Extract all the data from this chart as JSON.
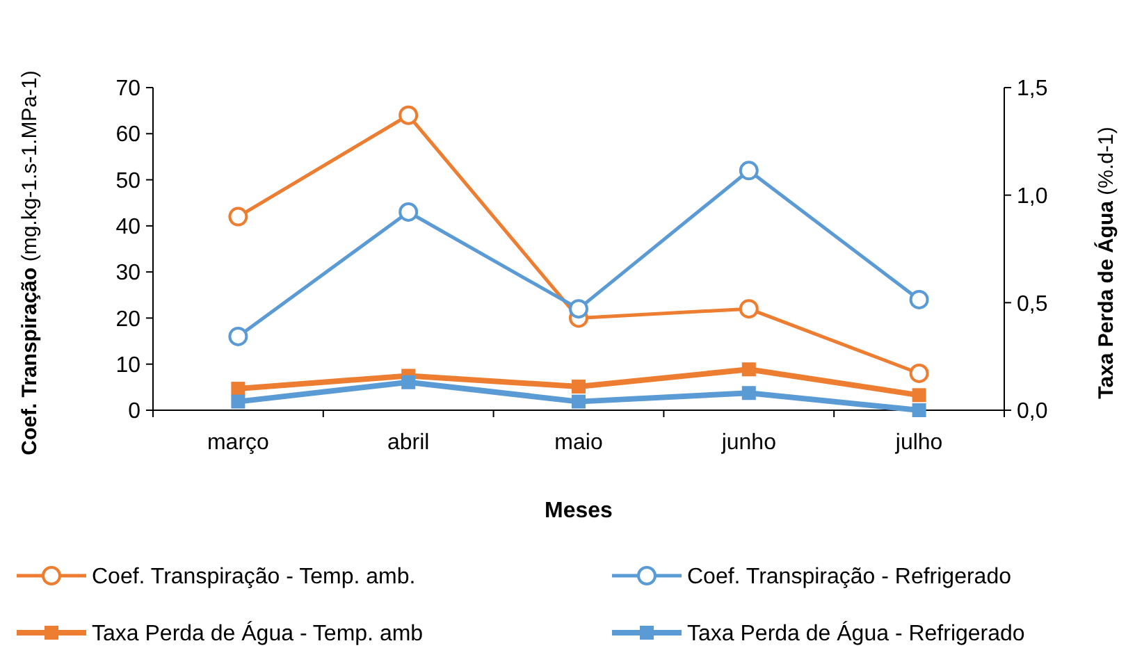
{
  "chart_data": {
    "type": "line",
    "xlabel": "Meses",
    "ylabel": "Coef. Transpiração (mg.kg-1.s-1.MPa-1)",
    "y2label": "Taxa Perda de Água (%.d-1)",
    "categories": [
      "março",
      "abril",
      "maio",
      "junho",
      "julho"
    ],
    "ylim": [
      0,
      70
    ],
    "yticks": [
      0,
      10,
      20,
      30,
      40,
      50,
      60,
      70
    ],
    "y2lim": [
      0,
      1.5
    ],
    "y2ticks": [
      {
        "value": 0,
        "label": "0,0"
      },
      {
        "value": 0.5,
        "label": "0,5"
      },
      {
        "value": 1,
        "label": "1,0"
      },
      {
        "value": 1.5,
        "label": "1,5"
      }
    ],
    "legend": "bottom",
    "grid": false,
    "series": [
      {
        "name": "Coef. Transpiração - Temp. amb.",
        "color": "#ed7d31",
        "marker": "circle",
        "values": [
          42,
          64,
          20,
          22,
          8
        ]
      },
      {
        "name": "Coef. Transpiração - Refrigerado",
        "color": "#5b9bd5",
        "marker": "circle",
        "values": [
          16,
          43,
          22,
          52,
          24
        ]
      },
      {
        "name": "Taxa Perda de Água - Temp. amb",
        "color": "#ed7d31",
        "marker": "square",
        "axis": "y2",
        "values": [
          0.1,
          0.16,
          0.11,
          0.19,
          0.07
        ]
      },
      {
        "name": "Taxa Perda de Água - Refrigerado",
        "color": "#5b9bd5",
        "marker": "square",
        "axis": "y2",
        "values": [
          0.04,
          0.13,
          0.04,
          0.08,
          0
        ]
      }
    ]
  }
}
